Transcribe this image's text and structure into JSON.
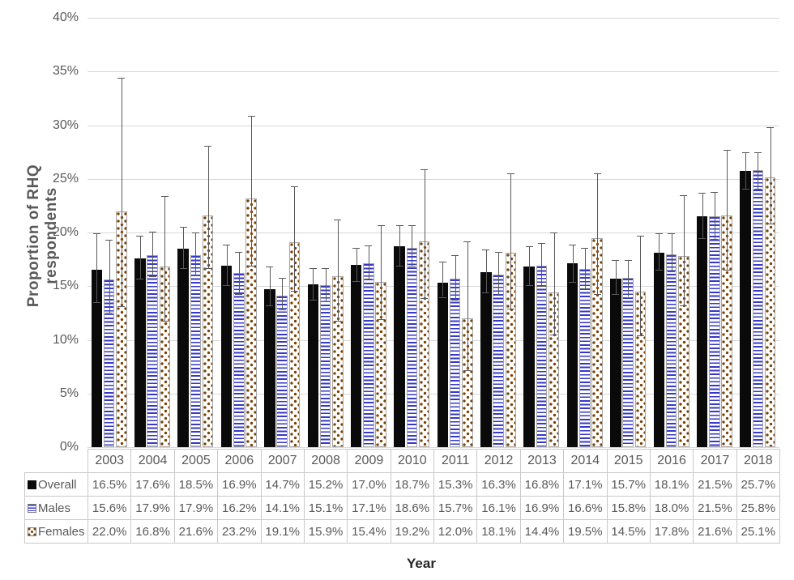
{
  "chart_data": {
    "type": "bar",
    "title": "",
    "xlabel": "Year",
    "ylabel": "Proportion of RHQ respondents",
    "ylim": [
      0,
      40
    ],
    "ytick_step": 5,
    "ytick_suffix": "%",
    "grid": true,
    "error_bars": true,
    "legend_position": "table-left",
    "categories": [
      "2003",
      "2004",
      "2005",
      "2006",
      "2007",
      "2008",
      "2009",
      "2010",
      "2011",
      "2012",
      "2013",
      "2014",
      "2015",
      "2016",
      "2017",
      "2018"
    ],
    "series": [
      {
        "name": "Overall",
        "pattern": "solid-black",
        "color": "#0a0a0a",
        "values": [
          16.5,
          17.6,
          18.5,
          16.9,
          14.7,
          15.2,
          17.0,
          18.7,
          15.3,
          16.3,
          16.8,
          17.1,
          15.7,
          18.1,
          21.5,
          25.7
        ],
        "ci_low": [
          13.5,
          15.7,
          16.7,
          15.1,
          13.2,
          13.7,
          15.5,
          16.9,
          14.0,
          14.4,
          15.1,
          15.4,
          14.3,
          16.5,
          19.5,
          24.1
        ],
        "ci_high": [
          19.9,
          19.7,
          20.5,
          18.9,
          16.8,
          16.7,
          18.6,
          20.7,
          17.3,
          18.4,
          18.7,
          18.9,
          17.4,
          19.9,
          23.7,
          27.5
        ]
      },
      {
        "name": "Males",
        "pattern": "horizontal-stripes",
        "color": "#3538c8",
        "values": [
          15.6,
          17.9,
          17.9,
          16.2,
          14.1,
          15.1,
          17.1,
          18.6,
          15.7,
          16.1,
          16.9,
          16.6,
          15.8,
          18.0,
          21.5,
          25.8
        ],
        "ci_low": [
          12.5,
          15.9,
          16.0,
          14.3,
          12.8,
          13.6,
          15.7,
          16.9,
          13.7,
          14.2,
          15.0,
          14.8,
          14.0,
          16.4,
          19.4,
          24.1
        ],
        "ci_high": [
          19.3,
          20.1,
          20.0,
          18.2,
          15.8,
          16.7,
          18.8,
          20.7,
          17.9,
          18.2,
          19.0,
          18.6,
          17.4,
          19.9,
          23.8,
          27.5
        ]
      },
      {
        "name": "Females",
        "pattern": "dots",
        "color": "#7b3f00",
        "values": [
          22.0,
          16.8,
          21.6,
          23.2,
          19.1,
          15.9,
          15.4,
          19.2,
          12.0,
          18.1,
          14.4,
          19.5,
          14.5,
          17.8,
          21.6,
          25.1
        ],
        "ci_low": [
          13.1,
          11.8,
          16.7,
          16.9,
          14.6,
          11.8,
          11.9,
          13.9,
          7.2,
          12.9,
          10.5,
          14.3,
          10.4,
          13.2,
          16.5,
          20.8
        ],
        "ci_high": [
          34.4,
          23.4,
          28.1,
          30.9,
          24.3,
          21.2,
          20.7,
          25.9,
          19.2,
          25.5,
          20.0,
          25.5,
          19.7,
          23.5,
          27.7,
          29.8
        ]
      }
    ]
  },
  "colors": {
    "background": "#ffffff",
    "gridline": "#d9d9d9",
    "axis_text": "#595959",
    "table_border": "#c9c9c9",
    "error_bar": "#595959",
    "x_title_text": "#262626",
    "males_stripe": "#3538c8",
    "females_dot": "#7b3f00",
    "overall_bar": "#0a0a0a"
  }
}
